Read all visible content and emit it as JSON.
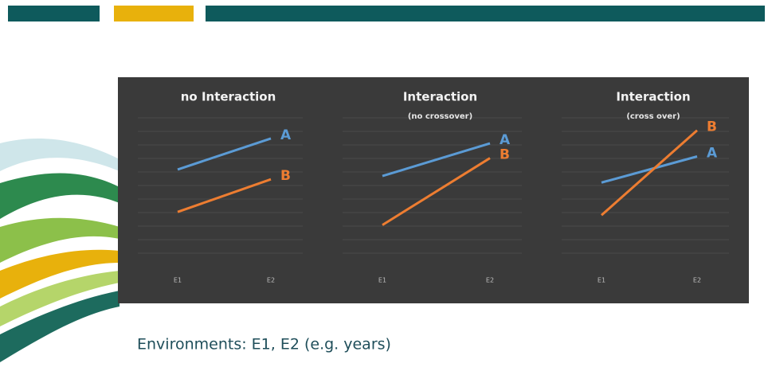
{
  "chart_data": [
    {
      "type": "line",
      "title": "no Interaction",
      "categories": [
        "E1",
        "E2"
      ],
      "ylim": [
        0,
        10
      ],
      "series": [
        {
          "name": "A",
          "color": "#5b9bd5",
          "values": [
            6.2,
            8.1
          ]
        },
        {
          "name": "B",
          "color": "#ed7d31",
          "values": [
            3.6,
            5.6
          ]
        }
      ]
    },
    {
      "type": "line",
      "title": "Interaction",
      "subtitle": "(no crossover)",
      "categories": [
        "E1",
        "E2"
      ],
      "ylim": [
        0,
        10
      ],
      "series": [
        {
          "name": "A",
          "color": "#5b9bd5",
          "values": [
            5.8,
            7.8
          ]
        },
        {
          "name": "B",
          "color": "#ed7d31",
          "values": [
            2.8,
            6.9
          ]
        }
      ]
    },
    {
      "type": "line",
      "title": "Interaction",
      "subtitle": "(cross over)",
      "categories": [
        "E1",
        "E2"
      ],
      "ylim": [
        0,
        10
      ],
      "series": [
        {
          "name": "A",
          "color": "#5b9bd5",
          "values": [
            5.4,
            7.0
          ]
        },
        {
          "name": "B",
          "color": "#ed7d31",
          "values": [
            3.4,
            8.6
          ]
        }
      ]
    }
  ],
  "caption": "Environments: E1, E2 (e.g. years)"
}
